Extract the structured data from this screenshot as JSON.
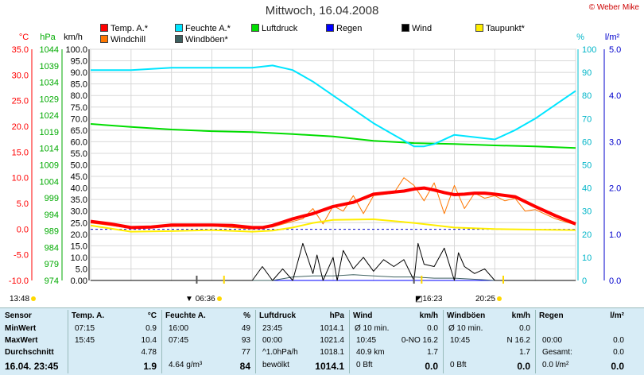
{
  "title": "Mittwoch, 16.04.2008",
  "copyright": "© Weber Mike",
  "legend": [
    {
      "label": "Temp. A.*",
      "color": "#ff0000"
    },
    {
      "label": "Feuchte A.*",
      "color": "#00e5ff"
    },
    {
      "label": "Luftdruck",
      "color": "#00dd00"
    },
    {
      "label": "Regen",
      "color": "#0000ff"
    },
    {
      "label": "Wind",
      "color": "#000000"
    },
    {
      "label": "Taupunkt*",
      "color": "#ffee00"
    },
    {
      "label": "Windchill",
      "color": "#ff7700"
    },
    {
      "label": "Windböen*",
      "color": "#3d6060"
    }
  ],
  "axis_units": {
    "temp": "°C",
    "press": "hPa",
    "wind": "km/h",
    "hum": "%",
    "rain": "l/m²"
  },
  "axis_ticks": {
    "temp": [
      "35.0",
      "30.0",
      "25.0",
      "20.0",
      "15.0",
      "10.0",
      "5.0",
      "0.0",
      "-5.0",
      "-10.0"
    ],
    "press": [
      "1044",
      "1039",
      "1034",
      "1029",
      "1024",
      "1019",
      "1014",
      "1009",
      "1004",
      "999",
      "994",
      "989",
      "984",
      "979",
      "974"
    ],
    "wind": [
      "100.0",
      "95.0",
      "90.0",
      "85.0",
      "80.0",
      "75.0",
      "70.0",
      "65.0",
      "60.0",
      "55.0",
      "50.0",
      "45.0",
      "40.0",
      "35.0",
      "30.0",
      "25.0",
      "20.0",
      "15.0",
      "10.0",
      "5.0",
      "0.00"
    ],
    "hum": [
      "100",
      "90",
      "80",
      "70",
      "60",
      "50",
      "40",
      "30",
      "20",
      "10",
      "0"
    ],
    "rain": [
      "5.0",
      "4.0",
      "3.0",
      "2.0",
      "1.0",
      "0.0"
    ],
    "time": [
      "00:00",
      "02:00",
      "04:00",
      "06:00",
      "08:00",
      "10:00",
      "12:00",
      "14:00",
      "16:00",
      "18:00",
      "20:00",
      "22:00",
      "24:00"
    ]
  },
  "markers": {
    "start": "13:48",
    "sunrise": "06:36",
    "mid": "16:23",
    "sunset": "20:25"
  },
  "chart_data": {
    "type": "line",
    "title": "Mittwoch, 16.04.2008",
    "x_range": [
      "00:00",
      "24:00"
    ],
    "series": [
      {
        "name": "Temp. A.*",
        "axis": "°C",
        "color": "#ff0000",
        "x": [
          0,
          1,
          2,
          3,
          4,
          5,
          6,
          7,
          8,
          8.5,
          9,
          10,
          11,
          12,
          13,
          14,
          15,
          15.5,
          16,
          16.5,
          17,
          17.5,
          18,
          18.5,
          19,
          19.5,
          20,
          21,
          22,
          23,
          24
        ],
        "y": [
          1.5,
          1.0,
          0.3,
          0.4,
          0.8,
          0.8,
          0.8,
          0.7,
          0.3,
          0.3,
          0.7,
          2.0,
          3.0,
          4.4,
          5.2,
          6.8,
          7.2,
          7.4,
          7.8,
          8.0,
          7.6,
          7.1,
          6.7,
          6.8,
          7.0,
          7.0,
          6.8,
          6.3,
          4.4,
          2.6,
          1.0
        ]
      },
      {
        "name": "Feuchte A.*",
        "axis": "%",
        "color": "#00e5ff",
        "x": [
          0,
          2,
          4,
          6,
          8,
          9,
          10,
          11,
          12,
          13,
          14,
          15,
          16,
          16.5,
          17,
          18,
          19,
          20,
          21,
          22,
          23,
          24
        ],
        "y": [
          91,
          91,
          92,
          92,
          92,
          93,
          91,
          86,
          80,
          74,
          68,
          63,
          58,
          58,
          59,
          63,
          62,
          61,
          65,
          70,
          76,
          82
        ]
      },
      {
        "name": "Luftdruck",
        "axis": "hPa",
        "color": "#00dd00",
        "x": [
          0,
          2,
          4,
          6,
          8,
          10,
          12,
          14,
          16,
          18,
          20,
          22,
          24
        ],
        "y": [
          1021.4,
          1020.5,
          1019.7,
          1019.2,
          1018.9,
          1018.3,
          1017.6,
          1016.3,
          1015.6,
          1015.3,
          1014.9,
          1014.6,
          1014.1
        ]
      },
      {
        "name": "Taupunkt*",
        "axis": "°C",
        "color": "#ffee00",
        "x": [
          0,
          2,
          4,
          6,
          8,
          9,
          10,
          11,
          12,
          14,
          16,
          18,
          20,
          22,
          24
        ],
        "y": [
          0.7,
          -0.5,
          -0.4,
          -0.2,
          -0.5,
          -0.3,
          0.3,
          1.2,
          1.8,
          1.9,
          1.2,
          0.3,
          0.0,
          -0.1,
          -0.2
        ]
      },
      {
        "name": "Windchill",
        "axis": "°C",
        "color": "#ff7700",
        "x": [
          0,
          2,
          4,
          6,
          8,
          9,
          10,
          10.5,
          11,
          11.5,
          12,
          12.5,
          13,
          13.5,
          14,
          15,
          15.5,
          16,
          16.5,
          17,
          17.5,
          18,
          18.5,
          19,
          19.5,
          20,
          20.5,
          21,
          21.5,
          22,
          23,
          24
        ],
        "y": [
          1.2,
          0.2,
          0.5,
          0.6,
          0.0,
          0.4,
          1.5,
          2.0,
          4.0,
          1.0,
          4.5,
          3.5,
          6.5,
          3.0,
          6.5,
          7.0,
          10.0,
          8.5,
          5.5,
          9.0,
          3.0,
          8.5,
          4.0,
          7.0,
          6.0,
          6.5,
          5.5,
          6.0,
          3.5,
          3.8,
          2.0,
          0.8
        ]
      },
      {
        "name": "Wind",
        "axis": "km/h",
        "color": "#000000",
        "x": [
          0,
          8,
          8.5,
          9,
          9.5,
          10,
          10.5,
          11,
          11.2,
          11.5,
          12,
          12.2,
          12.5,
          13,
          13.5,
          14,
          14.5,
          15,
          15.5,
          16,
          16.2,
          16.5,
          17,
          17.5,
          18,
          18.2,
          18.5,
          19,
          19.5,
          20,
          24
        ],
        "y": [
          0,
          0,
          6,
          0,
          5,
          0,
          16,
          3,
          11,
          0,
          10,
          0,
          13,
          5,
          10,
          4,
          9,
          6,
          9,
          0,
          16,
          7,
          6,
          14,
          0,
          12,
          6,
          3,
          5,
          0,
          0
        ]
      },
      {
        "name": "Windböen*",
        "axis": "km/h",
        "color": "#3d6060",
        "x": [
          0,
          9,
          10,
          11,
          12,
          13,
          14,
          15,
          16,
          17,
          18,
          19,
          20,
          24
        ],
        "y": [
          0,
          0,
          1.5,
          2,
          2,
          2.5,
          2,
          1.5,
          1.5,
          1,
          1,
          0.5,
          0,
          0
        ]
      },
      {
        "name": "Regen",
        "axis": "l/m²",
        "color": "#0000ff",
        "x": [
          0,
          24
        ],
        "y": [
          0,
          0
        ]
      }
    ],
    "pressure_baseline_hPa": 989.5,
    "grid": true
  },
  "info_table": {
    "row_labels": [
      "Sensor",
      "MinWert",
      "MaxWert",
      "Durchschnitt",
      "16.04. 23:45"
    ],
    "columns": [
      {
        "header": "Temp. A.",
        "unit": "°C",
        "rows": [
          [
            "07:15",
            "0.9"
          ],
          [
            "15:45",
            "10.4"
          ],
          [
            "",
            "4.78"
          ],
          [
            "",
            "1.9"
          ]
        ]
      },
      {
        "header": "Feuchte A.",
        "unit": "%",
        "rows": [
          [
            "16:00",
            "49"
          ],
          [
            "07:45",
            "93"
          ],
          [
            "",
            "77"
          ],
          [
            "4.64 g/m³",
            "84"
          ]
        ]
      },
      {
        "header": "Luftdruck",
        "unit": "hPa",
        "rows": [
          [
            "23:45",
            "1014.1"
          ],
          [
            "00:00",
            "1021.4"
          ],
          [
            "^1.0hPa/h",
            "1018.1"
          ],
          [
            "bewölkt",
            "1014.1"
          ]
        ]
      },
      {
        "header": "Wind",
        "unit": "km/h",
        "rows": [
          [
            "Ø 10 min.",
            "0.0"
          ],
          [
            "10:45",
            "0-NO 16.2"
          ],
          [
            "40.9 km",
            "1.7"
          ],
          [
            "0 Bft",
            "0.0"
          ]
        ]
      },
      {
        "header": "Windböen",
        "unit": "km/h",
        "rows": [
          [
            "Ø 10 min.",
            "0.0"
          ],
          [
            "10:45",
            "N 16.2"
          ],
          [
            "",
            "1.7"
          ],
          [
            "0 Bft",
            "0.0"
          ]
        ]
      },
      {
        "header": "Regen",
        "unit": "l/m²",
        "rows": [
          [
            "",
            ""
          ],
          [
            "00:00",
            "0.0"
          ],
          [
            "Gesamt:",
            "0.0"
          ],
          [
            "0.0 l/m²",
            "0.0"
          ]
        ]
      }
    ]
  }
}
